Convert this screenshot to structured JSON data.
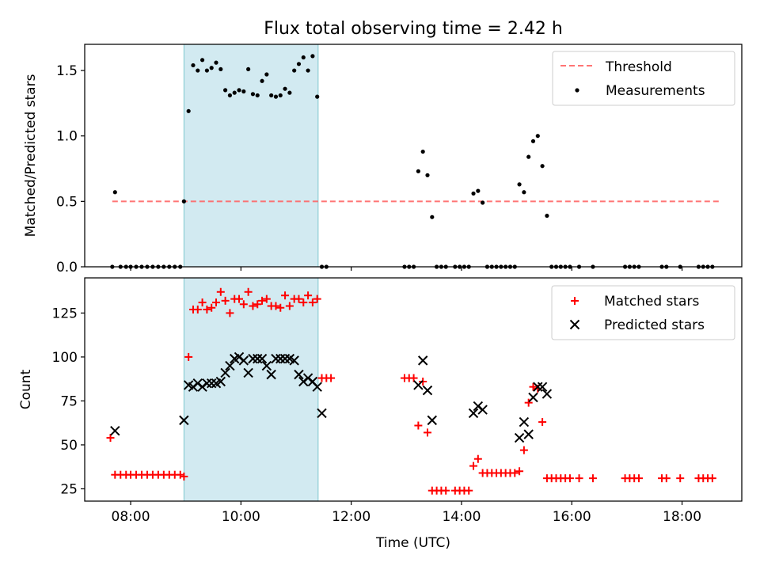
{
  "title": "Flux total observing time = 2.42 h",
  "chart_data": [
    {
      "panel": "top",
      "type": "scatter",
      "ylabel": "Matched/Predicted stars",
      "xlim": [
        "07:10",
        "19:05"
      ],
      "ylim": [
        0,
        1.7
      ],
      "yticks": [
        0.0,
        0.5,
        1.0,
        1.5
      ],
      "ytick_labels": [
        "0.0",
        "0.5",
        "1.0",
        "1.5"
      ],
      "shaded_region": {
        "start": "08:58",
        "end": "11:24",
        "color": "#add8e6"
      },
      "legend_position": "top-right",
      "threshold": {
        "name": "Threshold",
        "value": 0.5,
        "x_start": "07:40",
        "x_end": "18:40",
        "color": "#ff6666",
        "style": "dashed"
      },
      "series": [
        {
          "name": "Measurements",
          "color": "#000000",
          "marker": "dot",
          "points": [
            [
              "07:40",
              0
            ],
            [
              "07:43",
              0.57
            ],
            [
              "07:49",
              0
            ],
            [
              "07:55",
              0
            ],
            [
              "08:00",
              0
            ],
            [
              "08:06",
              0
            ],
            [
              "08:12",
              0
            ],
            [
              "08:18",
              0
            ],
            [
              "08:24",
              0
            ],
            [
              "08:30",
              0
            ],
            [
              "08:36",
              0
            ],
            [
              "08:42",
              0
            ],
            [
              "08:48",
              0
            ],
            [
              "08:54",
              0
            ],
            [
              "08:58",
              0.5
            ],
            [
              "09:03",
              1.19
            ],
            [
              "09:08",
              1.54
            ],
            [
              "09:13",
              1.5
            ],
            [
              "09:18",
              1.58
            ],
            [
              "09:23",
              1.5
            ],
            [
              "09:28",
              1.52
            ],
            [
              "09:33",
              1.56
            ],
            [
              "09:38",
              1.51
            ],
            [
              "09:43",
              1.35
            ],
            [
              "09:48",
              1.31
            ],
            [
              "09:53",
              1.33
            ],
            [
              "09:58",
              1.35
            ],
            [
              "10:03",
              1.34
            ],
            [
              "10:08",
              1.51
            ],
            [
              "10:13",
              1.32
            ],
            [
              "10:18",
              1.31
            ],
            [
              "10:23",
              1.42
            ],
            [
              "10:28",
              1.47
            ],
            [
              "10:33",
              1.31
            ],
            [
              "10:38",
              1.3
            ],
            [
              "10:43",
              1.31
            ],
            [
              "10:48",
              1.36
            ],
            [
              "10:53",
              1.33
            ],
            [
              "10:58",
              1.5
            ],
            [
              "11:03",
              1.55
            ],
            [
              "11:08",
              1.6
            ],
            [
              "11:13",
              1.5
            ],
            [
              "11:18",
              1.61
            ],
            [
              "11:23",
              1.3
            ],
            [
              "11:28",
              0
            ],
            [
              "11:33",
              0
            ],
            [
              "12:58",
              0
            ],
            [
              "13:03",
              0
            ],
            [
              "13:08",
              0
            ],
            [
              "13:13",
              0.73
            ],
            [
              "13:18",
              0.88
            ],
            [
              "13:23",
              0.7
            ],
            [
              "13:28",
              0.38
            ],
            [
              "13:33",
              0
            ],
            [
              "13:38",
              0
            ],
            [
              "13:43",
              0
            ],
            [
              "13:53",
              0
            ],
            [
              "13:58",
              0
            ],
            [
              "14:03",
              0
            ],
            [
              "14:08",
              0
            ],
            [
              "14:13",
              0.56
            ],
            [
              "14:18",
              0.58
            ],
            [
              "14:23",
              0.49
            ],
            [
              "14:28",
              0
            ],
            [
              "14:33",
              0
            ],
            [
              "14:38",
              0
            ],
            [
              "14:43",
              0
            ],
            [
              "14:48",
              0
            ],
            [
              "14:53",
              0
            ],
            [
              "14:58",
              0
            ],
            [
              "15:03",
              0.63
            ],
            [
              "15:08",
              0.57
            ],
            [
              "15:13",
              0.84
            ],
            [
              "15:18",
              0.96
            ],
            [
              "15:23",
              1.0
            ],
            [
              "15:28",
              0.77
            ],
            [
              "15:33",
              0.39
            ],
            [
              "15:38",
              0
            ],
            [
              "15:43",
              0
            ],
            [
              "15:48",
              0
            ],
            [
              "15:53",
              0
            ],
            [
              "15:58",
              0
            ],
            [
              "16:08",
              0
            ],
            [
              "16:23",
              0
            ],
            [
              "16:58",
              0
            ],
            [
              "17:03",
              0
            ],
            [
              "17:08",
              0
            ],
            [
              "17:13",
              0
            ],
            [
              "17:38",
              0
            ],
            [
              "17:43",
              0
            ],
            [
              "17:58",
              0
            ],
            [
              "18:18",
              0
            ],
            [
              "18:23",
              0
            ],
            [
              "18:28",
              0
            ],
            [
              "18:33",
              0
            ]
          ]
        }
      ]
    },
    {
      "panel": "bottom",
      "type": "scatter",
      "xlabel": "Time (UTC)",
      "ylabel": "Count",
      "xlim": [
        "07:10",
        "19:05"
      ],
      "ylim": [
        18,
        145
      ],
      "yticks": [
        25,
        50,
        75,
        100,
        125
      ],
      "ytick_labels": [
        "25",
        "50",
        "75",
        "100",
        "125"
      ],
      "xticks": [
        "08:00",
        "10:00",
        "12:00",
        "14:00",
        "16:00",
        "18:00"
      ],
      "xtick_labels": [
        "08:00",
        "10:00",
        "12:00",
        "14:00",
        "16:00",
        "18:00"
      ],
      "shaded_region": {
        "start": "08:58",
        "end": "11:24",
        "color": "#add8e6"
      },
      "legend_position": "top-right",
      "series": [
        {
          "name": "Matched stars",
          "color": "#ff0000",
          "marker": "plus",
          "points": [
            [
              "07:38",
              54
            ],
            [
              "07:43",
              33
            ],
            [
              "07:49",
              33
            ],
            [
              "07:55",
              33
            ],
            [
              "08:00",
              33
            ],
            [
              "08:06",
              33
            ],
            [
              "08:12",
              33
            ],
            [
              "08:18",
              33
            ],
            [
              "08:24",
              33
            ],
            [
              "08:30",
              33
            ],
            [
              "08:36",
              33
            ],
            [
              "08:42",
              33
            ],
            [
              "08:48",
              33
            ],
            [
              "08:54",
              33
            ],
            [
              "08:58",
              32
            ],
            [
              "09:03",
              100
            ],
            [
              "09:08",
              127
            ],
            [
              "09:13",
              127
            ],
            [
              "09:18",
              131
            ],
            [
              "09:23",
              127
            ],
            [
              "09:28",
              128
            ],
            [
              "09:33",
              131
            ],
            [
              "09:38",
              137
            ],
            [
              "09:43",
              132
            ],
            [
              "09:48",
              125
            ],
            [
              "09:53",
              133
            ],
            [
              "09:58",
              133
            ],
            [
              "10:03",
              130
            ],
            [
              "10:08",
              137
            ],
            [
              "10:13",
              129
            ],
            [
              "10:18",
              130
            ],
            [
              "10:23",
              132
            ],
            [
              "10:28",
              133
            ],
            [
              "10:33",
              129
            ],
            [
              "10:38",
              129
            ],
            [
              "10:43",
              128
            ],
            [
              "10:48",
              135
            ],
            [
              "10:53",
              129
            ],
            [
              "10:58",
              133
            ],
            [
              "11:03",
              133
            ],
            [
              "11:08",
              131
            ],
            [
              "11:13",
              135
            ],
            [
              "11:18",
              131
            ],
            [
              "11:23",
              133
            ],
            [
              "11:28",
              88
            ],
            [
              "11:33",
              88
            ],
            [
              "11:38",
              88
            ],
            [
              "12:58",
              88
            ],
            [
              "13:03",
              88
            ],
            [
              "13:08",
              88
            ],
            [
              "13:13",
              61
            ],
            [
              "13:18",
              86
            ],
            [
              "13:23",
              57
            ],
            [
              "13:28",
              24
            ],
            [
              "13:33",
              24
            ],
            [
              "13:38",
              24
            ],
            [
              "13:43",
              24
            ],
            [
              "13:53",
              24
            ],
            [
              "13:58",
              24
            ],
            [
              "14:03",
              24
            ],
            [
              "14:08",
              24
            ],
            [
              "14:13",
              38
            ],
            [
              "14:18",
              42
            ],
            [
              "14:23",
              34
            ],
            [
              "14:28",
              34
            ],
            [
              "14:33",
              34
            ],
            [
              "14:38",
              34
            ],
            [
              "14:43",
              34
            ],
            [
              "14:48",
              34
            ],
            [
              "14:53",
              34
            ],
            [
              "14:58",
              34
            ],
            [
              "15:03",
              35
            ],
            [
              "15:08",
              47
            ],
            [
              "15:13",
              74
            ],
            [
              "15:18",
              83
            ],
            [
              "15:23",
              82
            ],
            [
              "15:28",
              63
            ],
            [
              "15:33",
              31
            ],
            [
              "15:38",
              31
            ],
            [
              "15:43",
              31
            ],
            [
              "15:48",
              31
            ],
            [
              "15:53",
              31
            ],
            [
              "15:58",
              31
            ],
            [
              "16:08",
              31
            ],
            [
              "16:23",
              31
            ],
            [
              "16:58",
              31
            ],
            [
              "17:03",
              31
            ],
            [
              "17:08",
              31
            ],
            [
              "17:13",
              31
            ],
            [
              "17:38",
              31
            ],
            [
              "17:43",
              31
            ],
            [
              "17:58",
              31
            ],
            [
              "18:18",
              31
            ],
            [
              "18:23",
              31
            ],
            [
              "18:28",
              31
            ],
            [
              "18:33",
              31
            ]
          ]
        },
        {
          "name": "Predicted stars",
          "color": "#000000",
          "marker": "x",
          "points": [
            [
              "07:43",
              58
            ],
            [
              "08:58",
              64
            ],
            [
              "09:03",
              84
            ],
            [
              "09:08",
              83
            ],
            [
              "09:13",
              85
            ],
            [
              "09:18",
              83
            ],
            [
              "09:23",
              85
            ],
            [
              "09:28",
              85
            ],
            [
              "09:33",
              85
            ],
            [
              "09:38",
              86
            ],
            [
              "09:43",
              91
            ],
            [
              "09:48",
              95
            ],
            [
              "09:53",
              99
            ],
            [
              "09:58",
              100
            ],
            [
              "10:03",
              98
            ],
            [
              "10:08",
              91
            ],
            [
              "10:13",
              99
            ],
            [
              "10:18",
              99
            ],
            [
              "10:23",
              99
            ],
            [
              "10:28",
              95
            ],
            [
              "10:33",
              90
            ],
            [
              "10:38",
              99
            ],
            [
              "10:43",
              99
            ],
            [
              "10:48",
              99
            ],
            [
              "10:53",
              99
            ],
            [
              "10:58",
              98
            ],
            [
              "11:03",
              90
            ],
            [
              "11:08",
              86
            ],
            [
              "11:13",
              88
            ],
            [
              "11:18",
              86
            ],
            [
              "11:23",
              83
            ],
            [
              "11:28",
              68
            ],
            [
              "13:13",
              84
            ],
            [
              "13:18",
              98
            ],
            [
              "13:23",
              81
            ],
            [
              "13:28",
              64
            ],
            [
              "14:13",
              68
            ],
            [
              "14:18",
              72
            ],
            [
              "14:23",
              70
            ],
            [
              "15:03",
              54
            ],
            [
              "15:08",
              63
            ],
            [
              "15:13",
              56
            ],
            [
              "15:18",
              77
            ],
            [
              "15:23",
              83
            ],
            [
              "15:28",
              83
            ],
            [
              "15:33",
              79
            ]
          ]
        }
      ]
    }
  ]
}
